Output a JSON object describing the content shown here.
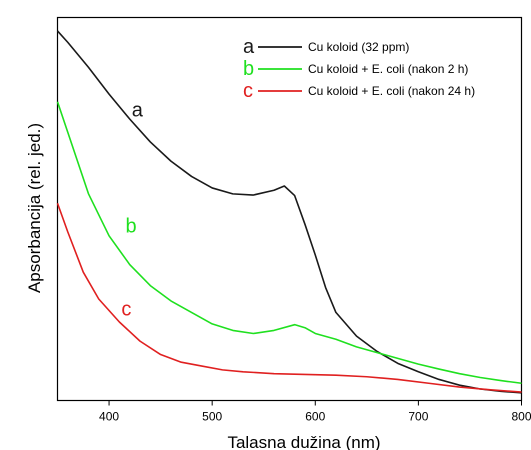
{
  "chart_data": {
    "type": "line",
    "title": "",
    "xlabel": "Talasna dužina (nm)",
    "ylabel": "Apsorbancija (rel. jed.)",
    "xlim": [
      350,
      800
    ],
    "ylim": [
      0,
      1
    ],
    "x_ticks": [
      "400",
      "500",
      "600",
      "700",
      "800"
    ],
    "y_ticks_shown": false,
    "grid": false,
    "legend_position": "top-right",
    "series": [
      {
        "name": "Cu koloid (32 ppm)",
        "marker": "a",
        "curve_label": "a",
        "color": "#1a1a1a",
        "points": [
          [
            350,
            0.965
          ],
          [
            360,
            0.935
          ],
          [
            380,
            0.87
          ],
          [
            400,
            0.8
          ],
          [
            420,
            0.735
          ],
          [
            440,
            0.675
          ],
          [
            460,
            0.625
          ],
          [
            480,
            0.585
          ],
          [
            500,
            0.555
          ],
          [
            520,
            0.5395
          ],
          [
            540,
            0.5365
          ],
          [
            560,
            0.549
          ],
          [
            570,
            0.56
          ],
          [
            580,
            0.535
          ],
          [
            590,
            0.46
          ],
          [
            600,
            0.38
          ],
          [
            610,
            0.295
          ],
          [
            620,
            0.23
          ],
          [
            640,
            0.168
          ],
          [
            660,
            0.128
          ],
          [
            680,
            0.097
          ],
          [
            700,
            0.075
          ],
          [
            720,
            0.055
          ],
          [
            740,
            0.04
          ],
          [
            760,
            0.03
          ],
          [
            780,
            0.024
          ],
          [
            800,
            0.02
          ]
        ]
      },
      {
        "name": "Cu koloid + E. coli (nakon 2 h)",
        "marker": "b",
        "curve_label": "b",
        "color": "#1fe01f",
        "points": [
          [
            350,
            0.78
          ],
          [
            360,
            0.7
          ],
          [
            380,
            0.54
          ],
          [
            400,
            0.43
          ],
          [
            420,
            0.355
          ],
          [
            440,
            0.3
          ],
          [
            460,
            0.26
          ],
          [
            480,
            0.23
          ],
          [
            500,
            0.2
          ],
          [
            520,
            0.183
          ],
          [
            540,
            0.175
          ],
          [
            560,
            0.183
          ],
          [
            580,
            0.198
          ],
          [
            590,
            0.19
          ],
          [
            600,
            0.175
          ],
          [
            620,
            0.16
          ],
          [
            640,
            0.14
          ],
          [
            660,
            0.125
          ],
          [
            680,
            0.11
          ],
          [
            700,
            0.095
          ],
          [
            720,
            0.082
          ],
          [
            740,
            0.07
          ],
          [
            760,
            0.06
          ],
          [
            780,
            0.052
          ],
          [
            800,
            0.045
          ]
        ]
      },
      {
        "name": "Cu koloid + E. coli (nakon 24 h)",
        "marker": "c",
        "curve_label": "c",
        "color": "#e02020",
        "points": [
          [
            350,
            0.515
          ],
          [
            360,
            0.44
          ],
          [
            375,
            0.335
          ],
          [
            390,
            0.265
          ],
          [
            410,
            0.205
          ],
          [
            430,
            0.155
          ],
          [
            450,
            0.12
          ],
          [
            470,
            0.1
          ],
          [
            490,
            0.09
          ],
          [
            510,
            0.08
          ],
          [
            530,
            0.075
          ],
          [
            560,
            0.07
          ],
          [
            590,
            0.068
          ],
          [
            620,
            0.066
          ],
          [
            650,
            0.062
          ],
          [
            680,
            0.055
          ],
          [
            710,
            0.045
          ],
          [
            740,
            0.035
          ],
          [
            770,
            0.028
          ],
          [
            800,
            0.022
          ]
        ]
      }
    ]
  }
}
